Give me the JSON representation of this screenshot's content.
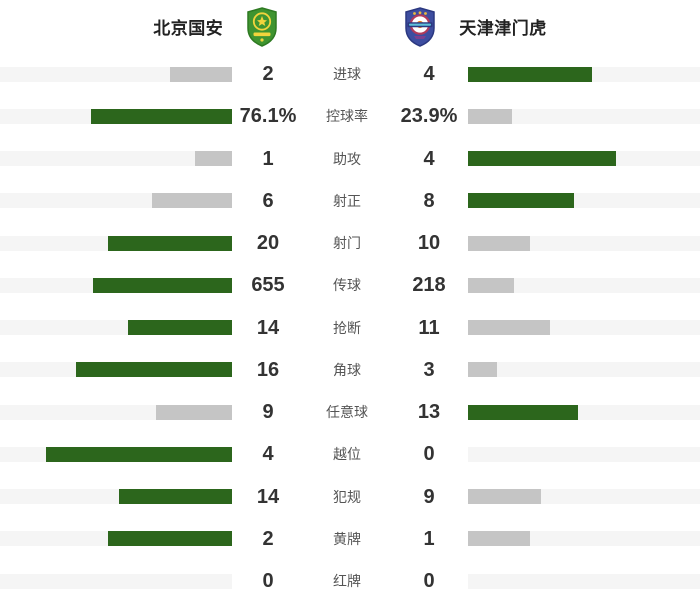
{
  "header": {
    "home_team": "北京国安",
    "away_team": "天津津门虎",
    "home_logo": "beijing-guoan-crest",
    "away_logo": "tianjin-jinmenhu-crest"
  },
  "colors": {
    "highlight_bar": "#2c661c",
    "muted_bar": "#c5c5c5",
    "bar_track": "#f5f5f5",
    "value_text": "#333333",
    "label_text": "#555555",
    "team_text": "#222222"
  },
  "chart_data": {
    "type": "bar",
    "variant": "horizontal-paired-team-comparison",
    "title": "",
    "legend_position": "top",
    "teams": [
      "北京国安",
      "天津津门虎"
    ],
    "bar_rule": "bar width = value / (home+away) * 80% of track; larger value is highlighted green, smaller is gray; zero renders no bar",
    "rows": [
      {
        "label": "进球",
        "home": "2",
        "away": "4",
        "home_value": 2,
        "away_value": 4
      },
      {
        "label": "控球率",
        "home": "76.1%",
        "away": "23.9%",
        "home_value": 76.1,
        "away_value": 23.9
      },
      {
        "label": "助攻",
        "home": "1",
        "away": "4",
        "home_value": 1,
        "away_value": 4
      },
      {
        "label": "射正",
        "home": "6",
        "away": "8",
        "home_value": 6,
        "away_value": 8
      },
      {
        "label": "射门",
        "home": "20",
        "away": "10",
        "home_value": 20,
        "away_value": 10
      },
      {
        "label": "传球",
        "home": "655",
        "away": "218",
        "home_value": 655,
        "away_value": 218
      },
      {
        "label": "抢断",
        "home": "14",
        "away": "11",
        "home_value": 14,
        "away_value": 11
      },
      {
        "label": "角球",
        "home": "16",
        "away": "3",
        "home_value": 16,
        "away_value": 3
      },
      {
        "label": "任意球",
        "home": "9",
        "away": "13",
        "home_value": 9,
        "away_value": 13
      },
      {
        "label": "越位",
        "home": "4",
        "away": "0",
        "home_value": 4,
        "away_value": 0
      },
      {
        "label": "犯规",
        "home": "14",
        "away": "9",
        "home_value": 14,
        "away_value": 9
      },
      {
        "label": "黄牌",
        "home": "2",
        "away": "1",
        "home_value": 2,
        "away_value": 1
      },
      {
        "label": "红牌",
        "home": "0",
        "away": "0",
        "home_value": 0,
        "away_value": 0
      }
    ]
  }
}
